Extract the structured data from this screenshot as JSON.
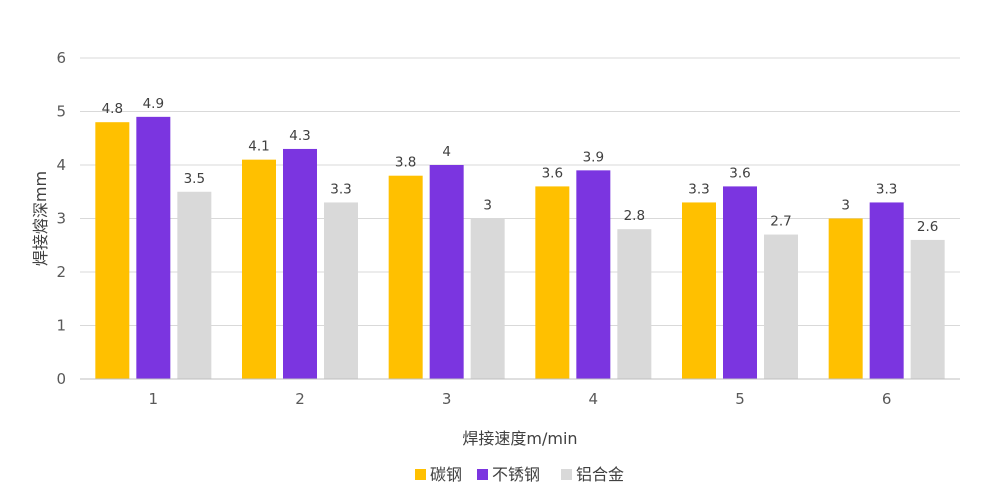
{
  "chart_data": {
    "type": "bar",
    "categories": [
      "1",
      "2",
      "3",
      "4",
      "5",
      "6"
    ],
    "series": [
      {
        "name": "碳钢",
        "values": [
          4.8,
          4.1,
          3.8,
          3.6,
          3.3,
          3
        ],
        "color": "#FFC000"
      },
      {
        "name": "不锈钢",
        "values": [
          4.9,
          4.3,
          4,
          3.9,
          3.6,
          3.3
        ],
        "color": "#7B35E0"
      },
      {
        "name": "铝合金",
        "values": [
          3.5,
          3.3,
          3,
          2.8,
          2.7,
          2.6
        ],
        "color": "#D9D9D9"
      }
    ],
    "value_labels": [
      [
        "4.8",
        "4.1",
        "3.8",
        "3.6",
        "3.3",
        "3"
      ],
      [
        "4.9",
        "4.3",
        "4",
        "3.9",
        "3.6",
        "3.3"
      ],
      [
        "3.5",
        "3.3",
        "3",
        "2.8",
        "2.7",
        "2.6"
      ]
    ],
    "yticks": [
      "0",
      "1",
      "2",
      "3",
      "4",
      "5",
      "6"
    ],
    "xlabel": "焊接速度m/min",
    "ylabel": "焊接熔深mm",
    "ylim": [
      0,
      6
    ],
    "grid": true,
    "legend_position": "bottom"
  }
}
